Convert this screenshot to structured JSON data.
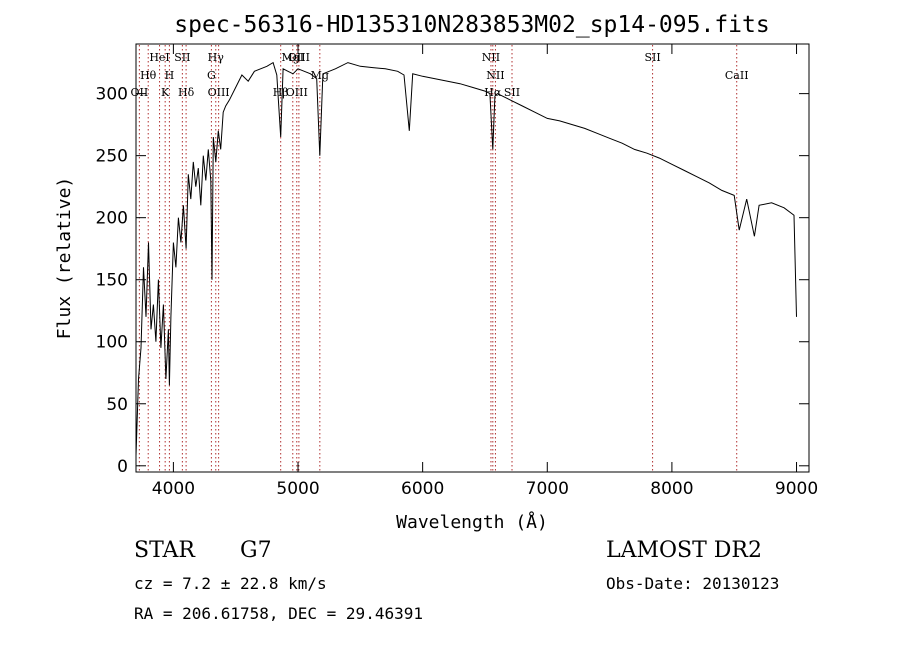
{
  "chart_data": {
    "type": "line",
    "title": "spec-56316-HD135310N283853M02_sp14-095.fits",
    "xlabel": "Wavelength (Å)",
    "ylabel": "Flux (relative)",
    "xlim": [
      3700,
      9100
    ],
    "ylim": [
      -5,
      340
    ],
    "xticks": [
      4000,
      5000,
      6000,
      7000,
      8000,
      9000
    ],
    "yticks": [
      0,
      50,
      100,
      150,
      200,
      250,
      300
    ],
    "grid": false,
    "series": [
      {
        "name": "flux",
        "x": [
          3700,
          3720,
          3740,
          3760,
          3780,
          3800,
          3820,
          3840,
          3860,
          3880,
          3900,
          3920,
          3940,
          3960,
          3968,
          3980,
          4000,
          4020,
          4040,
          4060,
          4080,
          4102,
          4120,
          4140,
          4160,
          4180,
          4200,
          4220,
          4240,
          4260,
          4280,
          4300,
          4310,
          4320,
          4340,
          4360,
          4380,
          4400,
          4420,
          4450,
          4500,
          4550,
          4600,
          4650,
          4700,
          4750,
          4800,
          4830,
          4861,
          4880,
          4920,
          4960,
          5000,
          5050,
          5100,
          5150,
          5175,
          5200,
          5250,
          5300,
          5400,
          5500,
          5600,
          5700,
          5800,
          5850,
          5893,
          5920,
          6000,
          6100,
          6200,
          6300,
          6400,
          6500,
          6540,
          6563,
          6580,
          6600,
          6700,
          6800,
          6900,
          7000,
          7100,
          7200,
          7300,
          7400,
          7500,
          7600,
          7700,
          7800,
          7900,
          8000,
          8100,
          8200,
          8300,
          8400,
          8500,
          8540,
          8600,
          8662,
          8700,
          8800,
          8900,
          8980,
          9000
        ],
        "y": [
          8,
          70,
          95,
          160,
          120,
          180,
          110,
          130,
          100,
          150,
          95,
          130,
          70,
          110,
          65,
          120,
          180,
          160,
          200,
          180,
          210,
          175,
          235,
          215,
          245,
          225,
          240,
          210,
          250,
          230,
          255,
          230,
          150,
          265,
          245,
          270,
          255,
          285,
          290,
          295,
          305,
          315,
          310,
          318,
          320,
          322,
          325,
          315,
          265,
          320,
          318,
          316,
          320,
          318,
          316,
          312,
          250,
          316,
          318,
          320,
          325,
          322,
          321,
          320,
          318,
          315,
          270,
          316,
          314,
          312,
          310,
          308,
          305,
          302,
          300,
          255,
          298,
          300,
          295,
          290,
          285,
          280,
          278,
          275,
          272,
          268,
          264,
          260,
          255,
          252,
          248,
          243,
          238,
          233,
          228,
          222,
          218,
          190,
          215,
          185,
          210,
          212,
          208,
          202,
          120
        ]
      }
    ],
    "lines": [
      {
        "label": "OII",
        "x": 3727,
        "row": 2
      },
      {
        "label": "Hθ",
        "x": 3798,
        "row": 1
      },
      {
        "label": "HeI",
        "x": 3889,
        "row": 0
      },
      {
        "label": "K",
        "x": 3934,
        "row": 2
      },
      {
        "label": "H",
        "x": 3968,
        "row": 1
      },
      {
        "label": "SII",
        "x": 4072,
        "row": 0
      },
      {
        "label": "Hδ",
        "x": 4102,
        "row": 2
      },
      {
        "label": "G",
        "x": 4305,
        "row": 1
      },
      {
        "label": "Hγ",
        "x": 4340,
        "row": 0
      },
      {
        "label": "OIII",
        "x": 4363,
        "row": 2
      },
      {
        "label": "Hβ",
        "x": 4861,
        "row": 2
      },
      {
        "label": "MgI",
        "x": 4958,
        "row": 0
      },
      {
        "label": "OIII",
        "x": 5007,
        "row": 0
      },
      {
        "label": "OIII",
        "x": 4990,
        "row": 2
      },
      {
        "label": "Mg",
        "x": 5175,
        "row": 1
      },
      {
        "label": "NII",
        "x": 6548,
        "row": 0
      },
      {
        "label": "NII",
        "x": 6584,
        "row": 1
      },
      {
        "label": "Hα",
        "x": 6563,
        "row": 2
      },
      {
        "label": "SII",
        "x": 6717,
        "row": 2
      },
      {
        "label": "SII",
        "x": 7845,
        "row": 0
      },
      {
        "label": "CaII",
        "x": 8520,
        "row": 1
      }
    ]
  },
  "info": {
    "object_type": "STAR",
    "subclass": "G7",
    "survey": "LAMOST DR2",
    "cz": "cz = 7.2 ± 22.8 km/s",
    "obs_date": "Obs-Date: 20130123",
    "coords": "RA = 206.61758, DEC =  29.46391"
  }
}
